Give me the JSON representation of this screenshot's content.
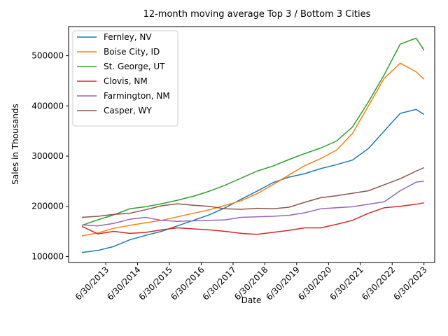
{
  "chart_data": {
    "type": "line",
    "title": "12-month moving average Top 3 / Bottom 3 Cities",
    "xlabel": "Date",
    "ylabel": "Sales in Thousands",
    "x_start": "2012-09-30",
    "x_end": "2023-06-30",
    "xlim": [
      "2012-04-30",
      "2023-10-31"
    ],
    "xticks": [
      "6/30/2013",
      "6/30/2014",
      "6/30/2015",
      "6/30/2016",
      "6/30/2017",
      "6/30/2018",
      "6/30/2019",
      "6/30/2020",
      "6/30/2021",
      "6/30/2022",
      "6/30/2023"
    ],
    "ylim": [
      88000,
      558000
    ],
    "yticks": [
      100000,
      200000,
      300000,
      400000,
      500000
    ],
    "grid": false,
    "legend_position": "upper-left",
    "series": [
      {
        "name": "Fernley, NV",
        "color": "#1f77b4",
        "points": [
          [
            "2012-09-30",
            108000
          ],
          [
            "2013-03-31",
            112000
          ],
          [
            "2013-09-30",
            120000
          ],
          [
            "2014-03-31",
            133000
          ],
          [
            "2014-09-30",
            142000
          ],
          [
            "2015-03-31",
            150000
          ],
          [
            "2015-09-30",
            161000
          ],
          [
            "2016-03-31",
            172000
          ],
          [
            "2016-09-30",
            183000
          ],
          [
            "2017-03-31",
            197000
          ],
          [
            "2017-09-30",
            214000
          ],
          [
            "2018-03-31",
            230000
          ],
          [
            "2018-09-30",
            247000
          ],
          [
            "2019-03-31",
            258000
          ],
          [
            "2019-09-30",
            265000
          ],
          [
            "2020-03-31",
            275000
          ],
          [
            "2020-09-30",
            283000
          ],
          [
            "2021-03-31",
            292000
          ],
          [
            "2021-09-30",
            315000
          ],
          [
            "2022-03-31",
            350000
          ],
          [
            "2022-09-30",
            385000
          ],
          [
            "2023-03-31",
            393000
          ],
          [
            "2023-06-30",
            383000
          ]
        ]
      },
      {
        "name": "Boise City, ID",
        "color": "#ff7f0e",
        "points": [
          [
            "2012-09-30",
            141000
          ],
          [
            "2013-03-31",
            147000
          ],
          [
            "2013-09-30",
            156000
          ],
          [
            "2014-03-31",
            162000
          ],
          [
            "2014-09-30",
            167000
          ],
          [
            "2015-03-31",
            172000
          ],
          [
            "2015-09-30",
            179000
          ],
          [
            "2016-03-31",
            186000
          ],
          [
            "2016-09-30",
            193000
          ],
          [
            "2017-03-31",
            202000
          ],
          [
            "2017-09-30",
            211000
          ],
          [
            "2018-03-31",
            225000
          ],
          [
            "2018-09-30",
            243000
          ],
          [
            "2019-03-31",
            262000
          ],
          [
            "2019-09-30",
            281000
          ],
          [
            "2020-03-31",
            295000
          ],
          [
            "2020-09-30",
            312000
          ],
          [
            "2021-03-31",
            345000
          ],
          [
            "2021-09-30",
            400000
          ],
          [
            "2022-03-31",
            455000
          ],
          [
            "2022-09-30",
            485000
          ],
          [
            "2023-03-31",
            468000
          ],
          [
            "2023-06-30",
            453000
          ]
        ]
      },
      {
        "name": "St. George, UT",
        "color": "#2ca02c",
        "points": [
          [
            "2012-09-30",
            162000
          ],
          [
            "2013-03-31",
            173000
          ],
          [
            "2013-09-30",
            183000
          ],
          [
            "2014-03-31",
            195000
          ],
          [
            "2014-09-30",
            199000
          ],
          [
            "2015-03-31",
            205000
          ],
          [
            "2015-09-30",
            212000
          ],
          [
            "2016-03-31",
            220000
          ],
          [
            "2016-09-30",
            230000
          ],
          [
            "2017-03-31",
            242000
          ],
          [
            "2017-09-30",
            256000
          ],
          [
            "2018-03-31",
            270000
          ],
          [
            "2018-09-30",
            280000
          ],
          [
            "2019-03-31",
            293000
          ],
          [
            "2019-09-30",
            305000
          ],
          [
            "2020-03-31",
            316000
          ],
          [
            "2020-09-30",
            330000
          ],
          [
            "2021-03-31",
            358000
          ],
          [
            "2021-09-30",
            408000
          ],
          [
            "2022-03-31",
            462000
          ],
          [
            "2022-09-30",
            523000
          ],
          [
            "2023-03-31",
            535000
          ],
          [
            "2023-06-30",
            511000
          ]
        ]
      },
      {
        "name": "Clovis, NM",
        "color": "#d62728",
        "points": [
          [
            "2012-09-30",
            160000
          ],
          [
            "2013-03-31",
            145000
          ],
          [
            "2013-09-30",
            150000
          ],
          [
            "2014-03-31",
            146000
          ],
          [
            "2014-09-30",
            148000
          ],
          [
            "2015-03-31",
            153000
          ],
          [
            "2015-09-30",
            157000
          ],
          [
            "2016-03-31",
            155000
          ],
          [
            "2016-09-30",
            153000
          ],
          [
            "2017-03-31",
            150000
          ],
          [
            "2017-09-30",
            146000
          ],
          [
            "2018-03-31",
            144000
          ],
          [
            "2018-09-30",
            148000
          ],
          [
            "2019-03-31",
            152000
          ],
          [
            "2019-09-30",
            157000
          ],
          [
            "2020-03-31",
            157000
          ],
          [
            "2020-09-30",
            164000
          ],
          [
            "2021-03-31",
            172000
          ],
          [
            "2021-09-30",
            186000
          ],
          [
            "2022-03-31",
            197000
          ],
          [
            "2022-09-30",
            200000
          ],
          [
            "2023-03-31",
            204000
          ],
          [
            "2023-06-30",
            207000
          ]
        ]
      },
      {
        "name": "Farmington, NM",
        "color": "#9467bd",
        "points": [
          [
            "2012-09-30",
            163000
          ],
          [
            "2013-03-31",
            161000
          ],
          [
            "2013-09-30",
            166000
          ],
          [
            "2014-03-31",
            174000
          ],
          [
            "2014-09-30",
            178000
          ],
          [
            "2015-03-31",
            172000
          ],
          [
            "2015-09-30",
            170000
          ],
          [
            "2016-03-31",
            171000
          ],
          [
            "2016-09-30",
            172000
          ],
          [
            "2017-03-31",
            173000
          ],
          [
            "2017-09-30",
            178000
          ],
          [
            "2018-03-31",
            179000
          ],
          [
            "2018-09-30",
            180000
          ],
          [
            "2019-03-31",
            182000
          ],
          [
            "2019-09-30",
            187000
          ],
          [
            "2020-03-31",
            195000
          ],
          [
            "2020-09-30",
            197000
          ],
          [
            "2021-03-31",
            199000
          ],
          [
            "2021-09-30",
            204000
          ],
          [
            "2022-03-31",
            209000
          ],
          [
            "2022-09-30",
            231000
          ],
          [
            "2023-03-31",
            248000
          ],
          [
            "2023-06-30",
            250000
          ]
        ]
      },
      {
        "name": "Casper, WY",
        "color": "#8c564b",
        "points": [
          [
            "2012-09-30",
            178000
          ],
          [
            "2013-03-31",
            180000
          ],
          [
            "2013-09-30",
            184000
          ],
          [
            "2014-03-31",
            186000
          ],
          [
            "2014-09-30",
            193000
          ],
          [
            "2015-03-31",
            201000
          ],
          [
            "2015-09-30",
            205000
          ],
          [
            "2016-03-31",
            202000
          ],
          [
            "2016-09-30",
            200000
          ],
          [
            "2017-03-31",
            195000
          ],
          [
            "2017-09-30",
            194000
          ],
          [
            "2018-03-31",
            196000
          ],
          [
            "2018-09-30",
            195000
          ],
          [
            "2019-03-31",
            198000
          ],
          [
            "2019-09-30",
            208000
          ],
          [
            "2020-03-31",
            217000
          ],
          [
            "2020-09-30",
            221000
          ],
          [
            "2021-03-31",
            226000
          ],
          [
            "2021-09-30",
            231000
          ],
          [
            "2022-03-31",
            243000
          ],
          [
            "2022-09-30",
            255000
          ],
          [
            "2023-03-31",
            270000
          ],
          [
            "2023-06-30",
            277000
          ]
        ]
      }
    ]
  }
}
